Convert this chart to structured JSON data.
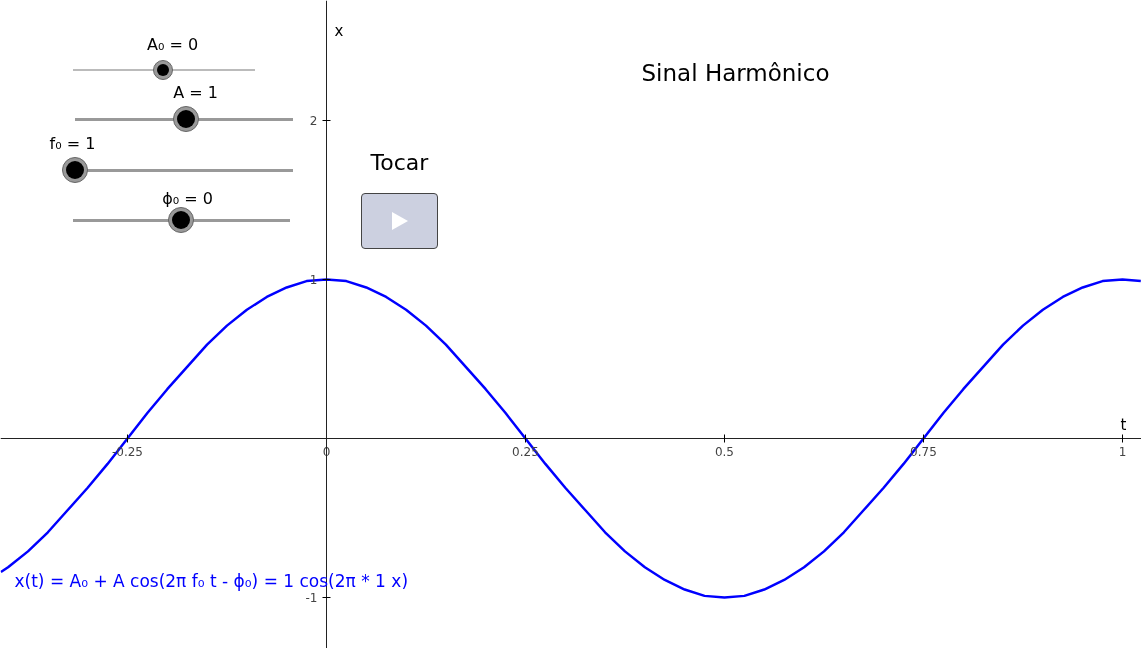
{
  "chart_data": {
    "type": "line",
    "title": "Sinal Harmônico",
    "xlabel": "t",
    "ylabel": "x",
    "xlim": [
      -0.4095,
      1.0239
    ],
    "ylim": [
      -1.321,
      2.755
    ],
    "xticks": [
      -0.25,
      0,
      0.25,
      0.5,
      0.75,
      1
    ],
    "yticks": [
      -1,
      1,
      2
    ],
    "grid": false,
    "marker": "none",
    "line_style": "solid",
    "annotations": [
      "A₀ = 0",
      "A = 1",
      "f₀ = 1",
      "ϕ₀ = 0",
      "Tocar",
      "x(t) = A₀ + A cos(2π f₀ t - ϕ₀) = 1 cos(2π * 1 x)"
    ],
    "series": [
      {
        "color": "#0000ff",
        "x": [
          -0.409,
          -0.4,
          -0.375,
          -0.35,
          -0.325,
          -0.3,
          -0.275,
          -0.25,
          -0.225,
          -0.2,
          -0.175,
          -0.15,
          -0.125,
          -0.1,
          -0.075,
          -0.05,
          -0.025,
          0,
          0.025,
          0.05,
          0.075,
          0.1,
          0.125,
          0.15,
          0.175,
          0.2,
          0.225,
          0.25,
          0.275,
          0.3,
          0.325,
          0.35,
          0.375,
          0.4,
          0.425,
          0.45,
          0.475,
          0.5,
          0.525,
          0.55,
          0.575,
          0.6,
          0.625,
          0.65,
          0.675,
          0.7,
          0.725,
          0.75,
          0.775,
          0.8,
          0.825,
          0.85,
          0.875,
          0.9,
          0.925,
          0.95,
          0.975,
          1.0,
          1.023
        ],
        "values": [
          -0.84,
          -0.81,
          -0.71,
          -0.59,
          -0.45,
          -0.31,
          -0.16,
          0,
          0.16,
          0.31,
          0.45,
          0.59,
          0.71,
          0.81,
          0.89,
          0.95,
          0.99,
          1,
          0.99,
          0.95,
          0.89,
          0.81,
          0.71,
          0.59,
          0.45,
          0.31,
          0.16,
          0,
          -0.16,
          -0.31,
          -0.45,
          -0.59,
          -0.71,
          -0.81,
          -0.89,
          -0.95,
          -0.99,
          -1,
          -0.99,
          -0.95,
          -0.89,
          -0.81,
          -0.71,
          -0.59,
          -0.45,
          -0.31,
          -0.16,
          0,
          0.16,
          0.31,
          0.45,
          0.59,
          0.71,
          0.81,
          0.89,
          0.95,
          0.99,
          1,
          0.99
        ]
      }
    ]
  }
}
